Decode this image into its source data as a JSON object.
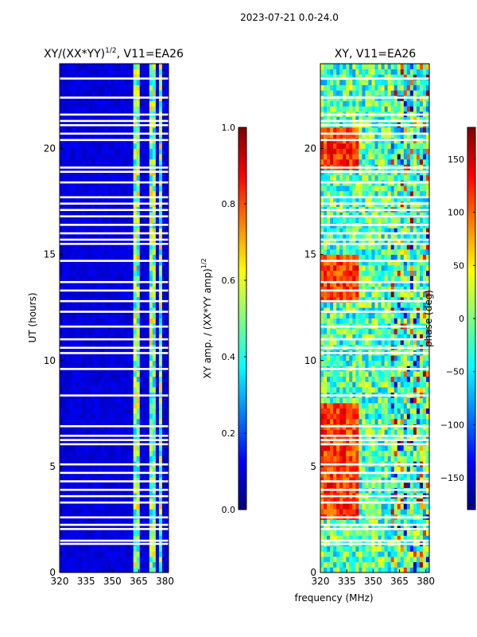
{
  "suptitle": "2023-07-21 0.0-24.0",
  "colors": {
    "jet": [
      "#00007f",
      "#0000ff",
      "#007fff",
      "#00ffff",
      "#7fff7f",
      "#ffff00",
      "#ff7f00",
      "#ff0000",
      "#7f0000"
    ],
    "gap": "#ffffff"
  },
  "chart_data": [
    {
      "type": "heatmap",
      "title": "XY/(XX*YY)",
      "title_exponent": "1/2",
      "title_suffix": ", V11=EA26",
      "xlabel": "",
      "ylabel": "UT (hours)",
      "xlim": [
        320,
        382
      ],
      "ylim": [
        0,
        24
      ],
      "xticks": [
        "320",
        "335",
        "350",
        "365",
        "380"
      ],
      "xtick_values": [
        320,
        335,
        350,
        365,
        380
      ],
      "yticks": [
        "0",
        "5",
        "10",
        "15",
        "20"
      ],
      "ytick_values": [
        0,
        5,
        10,
        15,
        20
      ],
      "colorbar": {
        "label": "XY amp. / (XX*YY amp)",
        "label_exponent": "1/2",
        "range": [
          0.0,
          1.0
        ],
        "ticks": [
          "0.0",
          "0.2",
          "0.4",
          "0.6",
          "0.8",
          "1.0"
        ],
        "tick_values": [
          0.0,
          0.2,
          0.4,
          0.6,
          0.8,
          1.0
        ]
      },
      "description_of_values": "mostly low amplitude (~0.05-0.1) below 360 MHz; brighter channels (~0.3-0.7) between ~362-378 MHz",
      "background_value": 0.06,
      "bright_channels_mhz": [
        [
          362,
          366
        ],
        [
          367,
          368
        ],
        [
          369,
          370
        ],
        [
          371,
          374
        ],
        [
          376,
          378
        ]
      ]
    },
    {
      "type": "heatmap",
      "title": "XY, V11=EA26",
      "xlabel": "frequency (MHz)",
      "ylabel": "",
      "xlim": [
        320,
        382
      ],
      "ylim": [
        0,
        24
      ],
      "xticks": [
        "320",
        "335",
        "350",
        "365",
        "380"
      ],
      "xtick_values": [
        320,
        335,
        350,
        365,
        380
      ],
      "yticks": [
        "0",
        "5",
        "10",
        "15",
        "20"
      ],
      "ytick_values": [
        0,
        5,
        10,
        15,
        20
      ],
      "colorbar": {
        "label": "phase (deg)",
        "range": [
          -180,
          180
        ],
        "ticks": [
          "−150",
          "−100",
          "−50",
          "0",
          "50",
          "100",
          "150"
        ],
        "tick_values": [
          -150,
          -100,
          -50,
          0,
          50,
          100,
          150
        ]
      },
      "description_of_values": "phase varies broadly; warm (~50-150 deg) patches near 320-340 MHz around 3-8 h, 13-15 h, 19-21 h; cool elsewhere"
    }
  ],
  "flagged_hours": [
    1.35,
    1.5,
    2.05,
    2.25,
    2.6,
    3.3,
    3.6,
    3.9,
    4.3,
    4.7,
    5.1,
    6.05,
    6.25,
    6.45,
    6.9,
    8.35,
    9.6,
    10.35,
    10.6,
    11.0,
    11.6,
    12.3,
    12.8,
    13.3,
    13.7,
    14.7,
    15.5,
    15.7,
    16.0,
    16.4,
    16.8,
    17.1,
    17.4,
    17.7,
    18.4,
    18.9,
    19.1,
    20.4,
    20.7,
    21.1,
    21.3,
    21.6,
    22.4,
    23.3
  ]
}
